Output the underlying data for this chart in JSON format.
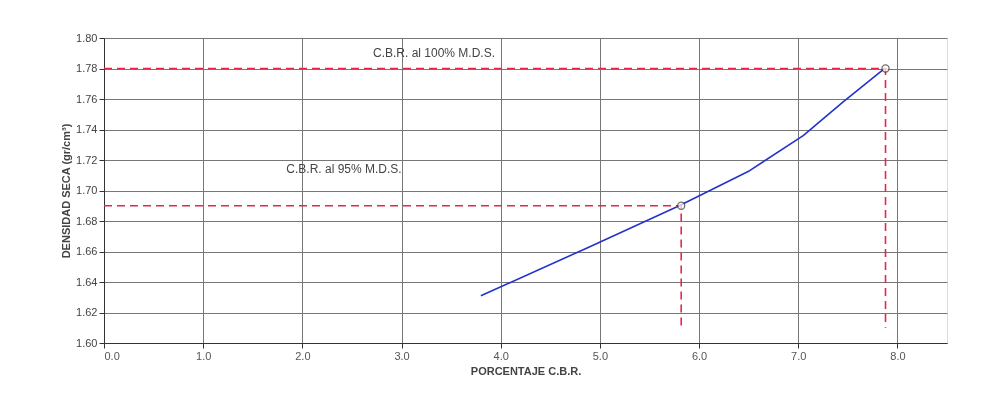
{
  "chart_data": {
    "type": "line",
    "xlabel": "PORCENTAJE C.B.R.",
    "ylabel": "DENSIDAD SECA (gr/cm³)",
    "xlim": [
      0,
      8.5
    ],
    "ylim": [
      1.6,
      1.8
    ],
    "xticks": [
      {
        "value": 0,
        "label": "0.0"
      },
      {
        "value": 1,
        "label": "1.0"
      },
      {
        "value": 2,
        "label": "2.0"
      },
      {
        "value": 3,
        "label": "3.0"
      },
      {
        "value": 4,
        "label": "4.0"
      },
      {
        "value": 5,
        "label": "5.0"
      },
      {
        "value": 6,
        "label": "6.0"
      },
      {
        "value": 7,
        "label": "7.0"
      },
      {
        "value": 8,
        "label": "8.0"
      }
    ],
    "yticks": [
      {
        "value": 1.6,
        "label": "1.60"
      },
      {
        "value": 1.62,
        "label": "1.62"
      },
      {
        "value": 1.64,
        "label": "1.64"
      },
      {
        "value": 1.66,
        "label": "1.66"
      },
      {
        "value": 1.68,
        "label": "1.68"
      },
      {
        "value": 1.7,
        "label": "1.70"
      },
      {
        "value": 1.72,
        "label": "1.72"
      },
      {
        "value": 1.74,
        "label": "1.74"
      },
      {
        "value": 1.76,
        "label": "1.76"
      },
      {
        "value": 1.78,
        "label": "1.78"
      },
      {
        "value": 1.8,
        "label": "1.80"
      }
    ],
    "grid": true,
    "series": [
      {
        "color": "#2233cc",
        "line_style": "solid",
        "marker": "none",
        "x": [
          3.8,
          4.86,
          5.8,
          6.51,
          7.05,
          7.45,
          7.85,
          7.88
        ],
        "values": [
          1.631,
          1.662,
          1.69,
          1.713,
          1.736,
          1.758,
          1.779,
          1.78
        ]
      },
      {
        "color": "#e8244a",
        "line_style": "dashed",
        "marker": "none",
        "x": [
          0,
          5.82,
          5.82
        ],
        "values": [
          1.69,
          1.69,
          1.61
        ]
      },
      {
        "color": "#e8244a",
        "line_style": "dashed",
        "marker": "none",
        "x": [
          0,
          7.88,
          7.88
        ],
        "values": [
          1.78,
          1.78,
          1.61
        ]
      },
      {
        "type": "scatter",
        "color": "#333333",
        "marker": "circle",
        "x": [
          5.82,
          7.88
        ],
        "values": [
          1.69,
          1.78
        ]
      }
    ],
    "annotations": [
      "C.B.R. al 100% M.D.S.",
      "C.B.R. al 95% M.D.S."
    ]
  }
}
